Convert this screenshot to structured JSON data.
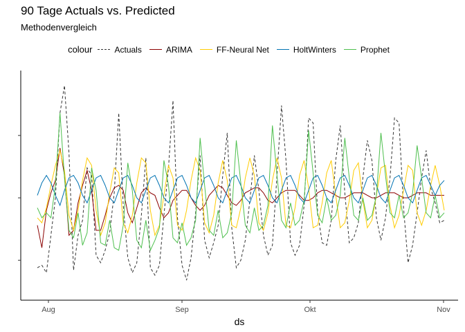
{
  "chart_data": {
    "type": "line",
    "title": "90 Tage Actuals vs. Predicted",
    "subtitle": "Methodenvergleich",
    "xlabel": "ds",
    "ylabel": "",
    "legend_title": "colour",
    "legend_position": "top",
    "x_ticks": [
      "Aug",
      "Sep",
      "Okt",
      "Nov"
    ],
    "series": [
      {
        "name": "Actuals",
        "color": "#333333",
        "dash": "4,3",
        "values": [
          0.97,
          0.98,
          0.95,
          1.1,
          1.25,
          1.59,
          1.7,
          1.43,
          0.96,
          1.1,
          1.16,
          1.37,
          1.34,
          1.02,
          0.99,
          1.04,
          1.11,
          1.27,
          1.59,
          1.22,
          1.01,
          0.95,
          0.99,
          1.18,
          1.41,
          0.97,
          0.94,
          0.98,
          1.18,
          1.37,
          1.64,
          1.17,
          0.98,
          0.92,
          1.01,
          1.19,
          1.42,
          1.08,
          1.01,
          1.07,
          1.14,
          1.34,
          1.51,
          1.13,
          0.97,
          1.0,
          1.08,
          1.24,
          1.42,
          1.28,
          1.1,
          1.02,
          1.06,
          1.34,
          1.62,
          1.4,
          1.07,
          1.02,
          1.06,
          1.22,
          1.57,
          1.55,
          1.19,
          1.07,
          1.06,
          1.16,
          1.4,
          1.54,
          1.27,
          1.07,
          1.09,
          1.15,
          1.33,
          1.48,
          1.4,
          1.17,
          1.08,
          1.17,
          1.33,
          1.57,
          1.55,
          1.21,
          0.99,
          1.06,
          1.19,
          1.33,
          1.44,
          1.29,
          1.23,
          1.15,
          1.16
        ]
      },
      {
        "name": "ARIMA",
        "color": "#8b0000",
        "dash": "",
        "values": [
          1.14,
          1.05,
          1.2,
          1.27,
          1.32,
          1.45,
          1.34,
          1.1,
          1.12,
          1.23,
          1.3,
          1.36,
          1.28,
          1.12,
          1.12,
          1.18,
          1.25,
          1.29,
          1.3,
          1.28,
          1.19,
          1.15,
          1.21,
          1.27,
          1.29,
          1.27,
          1.26,
          1.21,
          1.17,
          1.19,
          1.24,
          1.26,
          1.28,
          1.28,
          1.25,
          1.22,
          1.2,
          1.22,
          1.26,
          1.28,
          1.3,
          1.29,
          1.26,
          1.23,
          1.22,
          1.24,
          1.27,
          1.28,
          1.29,
          1.29,
          1.27,
          1.24,
          1.23,
          1.25,
          1.27,
          1.28,
          1.28,
          1.28,
          1.26,
          1.24,
          1.24,
          1.25,
          1.27,
          1.28,
          1.28,
          1.27,
          1.26,
          1.25,
          1.25,
          1.26,
          1.27,
          1.27,
          1.27,
          1.26,
          1.25,
          1.25,
          1.26,
          1.27,
          1.27,
          1.27,
          1.26,
          1.25,
          1.25,
          1.26,
          1.27,
          1.27,
          1.27,
          1.26,
          1.26,
          1.26,
          1.26
        ]
      },
      {
        "name": "FF-Neural Net",
        "color": "#ffcc00",
        "dash": "",
        "values": [
          1.17,
          1.15,
          1.21,
          1.3,
          1.38,
          1.44,
          1.36,
          1.18,
          1.12,
          1.2,
          1.32,
          1.41,
          1.38,
          1.2,
          1.1,
          1.15,
          1.27,
          1.37,
          1.35,
          1.15,
          1.11,
          1.18,
          1.31,
          1.41,
          1.39,
          1.2,
          1.1,
          1.14,
          1.26,
          1.38,
          1.33,
          1.14,
          1.12,
          1.2,
          1.32,
          1.41,
          1.36,
          1.15,
          1.11,
          1.18,
          1.31,
          1.4,
          1.32,
          1.14,
          1.13,
          1.21,
          1.33,
          1.41,
          1.34,
          1.15,
          1.12,
          1.19,
          1.32,
          1.41,
          1.33,
          1.14,
          1.13,
          1.21,
          1.34,
          1.4,
          1.29,
          1.13,
          1.14,
          1.23,
          1.35,
          1.4,
          1.26,
          1.13,
          1.15,
          1.24,
          1.36,
          1.39,
          1.24,
          1.13,
          1.16,
          1.26,
          1.37,
          1.38,
          1.22,
          1.13,
          1.18,
          1.28,
          1.38,
          1.36,
          1.19,
          1.14,
          1.2,
          1.3,
          1.38,
          1.3,
          1.2
        ]
      },
      {
        "name": "HoltWinters",
        "color": "#0072b2",
        "dash": "",
        "values": [
          1.26,
          1.31,
          1.34,
          1.31,
          1.26,
          1.22,
          1.28,
          1.33,
          1.34,
          1.31,
          1.26,
          1.23,
          1.28,
          1.33,
          1.34,
          1.3,
          1.25,
          1.23,
          1.28,
          1.33,
          1.34,
          1.3,
          1.25,
          1.23,
          1.28,
          1.33,
          1.34,
          1.3,
          1.25,
          1.23,
          1.28,
          1.33,
          1.34,
          1.3,
          1.25,
          1.23,
          1.28,
          1.33,
          1.34,
          1.3,
          1.25,
          1.23,
          1.28,
          1.33,
          1.34,
          1.3,
          1.25,
          1.23,
          1.28,
          1.33,
          1.34,
          1.3,
          1.25,
          1.23,
          1.28,
          1.33,
          1.34,
          1.3,
          1.25,
          1.23,
          1.28,
          1.33,
          1.34,
          1.3,
          1.25,
          1.23,
          1.28,
          1.33,
          1.34,
          1.3,
          1.25,
          1.23,
          1.28,
          1.33,
          1.34,
          1.3,
          1.25,
          1.23,
          1.28,
          1.33,
          1.34,
          1.3,
          1.25,
          1.23,
          1.28,
          1.33,
          1.34,
          1.3,
          1.26,
          1.3,
          1.32
        ]
      },
      {
        "name": "Prophet",
        "color": "#4dbf4d",
        "dash": "",
        "values": [
          1.21,
          1.17,
          1.19,
          1.17,
          1.3,
          1.59,
          1.33,
          1.12,
          1.09,
          1.19,
          1.06,
          1.11,
          1.37,
          1.28,
          1.07,
          1.06,
          1.16,
          1.05,
          1.04,
          1.14,
          1.39,
          1.28,
          1.08,
          1.05,
          1.16,
          1.04,
          1.08,
          1.13,
          1.4,
          1.3,
          1.09,
          1.07,
          1.15,
          1.06,
          1.09,
          1.16,
          1.49,
          1.3,
          1.12,
          1.1,
          1.2,
          1.09,
          1.11,
          1.19,
          1.48,
          1.31,
          1.14,
          1.11,
          1.21,
          1.12,
          1.14,
          1.22,
          1.54,
          1.34,
          1.16,
          1.13,
          1.23,
          1.14,
          1.16,
          1.24,
          1.52,
          1.35,
          1.18,
          1.15,
          1.25,
          1.16,
          1.18,
          1.26,
          1.49,
          1.33,
          1.18,
          1.16,
          1.25,
          1.16,
          1.18,
          1.26,
          1.51,
          1.34,
          1.19,
          1.17,
          1.26,
          1.17,
          1.19,
          1.27,
          1.46,
          1.33,
          1.19,
          1.17,
          1.26,
          1.17,
          1.19
        ]
      }
    ]
  }
}
